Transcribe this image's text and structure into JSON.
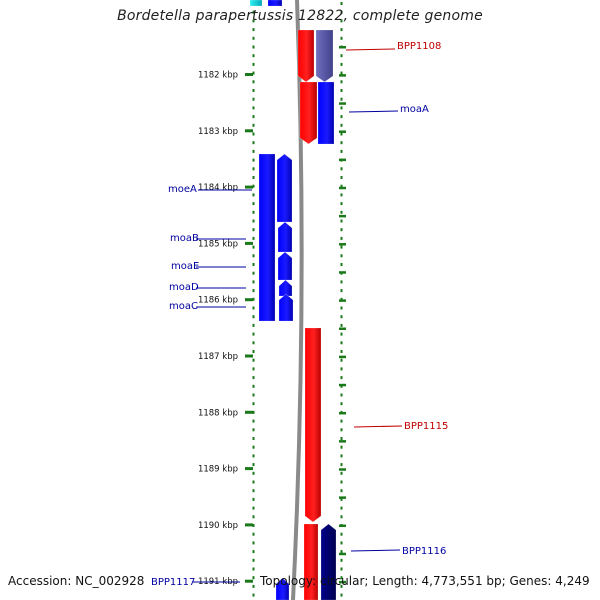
{
  "title": "Bordetella parapertussis 12822, complete genome",
  "footer": {
    "accession": "Accession: NC_002928",
    "summary": "Topology: circular; Length: 4,773,551 bp; Genes: 4,249"
  },
  "colors": {
    "forward": "#ff0000",
    "reverse": "#0000ff",
    "purple": "#6060b0",
    "navy": "#000070",
    "cyan": "#00d8e0",
    "backbone": "#8a8a8a",
    "tick": "#1a7a1a",
    "label_red": "#c00000",
    "label_blue": "#0000a0"
  },
  "scale": {
    "unit": "kbp",
    "ticks": [
      "1182 kbp",
      "1183 kbp",
      "1184 kbp",
      "1185 kbp",
      "1186 kbp",
      "1187 kbp",
      "1188 kbp",
      "1189 kbp",
      "1190 kbp",
      "1191 kbp"
    ]
  },
  "genes": [
    {
      "name": "BPP1108",
      "strand": "forward"
    },
    {
      "name": "moaA",
      "strand": "reverse"
    },
    {
      "name": "moeA",
      "strand": "reverse"
    },
    {
      "name": "moaB",
      "strand": "reverse"
    },
    {
      "name": "moaE",
      "strand": "reverse"
    },
    {
      "name": "moaD",
      "strand": "reverse"
    },
    {
      "name": "moaC",
      "strand": "reverse"
    },
    {
      "name": "BPP1115",
      "strand": "forward"
    },
    {
      "name": "BPP1116",
      "strand": "reverse"
    },
    {
      "name": "BPP1117",
      "strand": "reverse"
    }
  ]
}
